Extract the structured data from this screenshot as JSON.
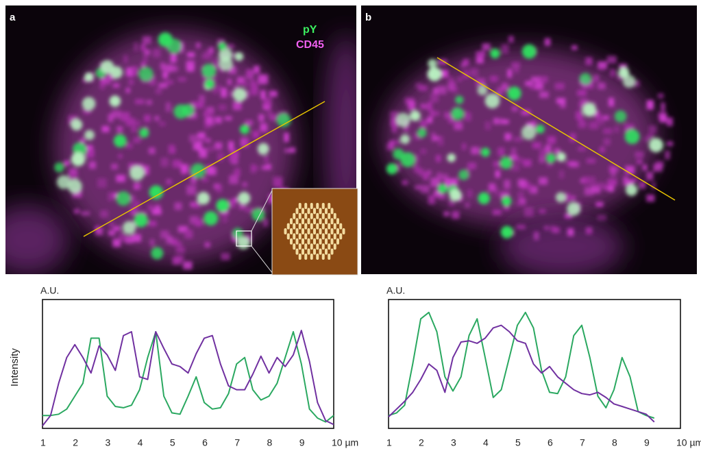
{
  "panels": [
    {
      "label": "a"
    },
    {
      "label": "b"
    }
  ],
  "chart_data": [
    {
      "type": "line",
      "unit_label": "A.U.",
      "ylabel": "Intensity",
      "xlim": [
        1,
        10
      ],
      "ylim": [
        0,
        100
      ],
      "xticks": [
        1,
        2,
        3,
        4,
        5,
        6,
        7,
        8,
        9,
        {
          "value": 10,
          "label": "10 µm"
        }
      ],
      "x": [
        1,
        1.25,
        1.5,
        1.75,
        2,
        2.25,
        2.5,
        2.75,
        3,
        3.25,
        3.5,
        3.75,
        4,
        4.25,
        4.5,
        4.75,
        5,
        5.25,
        5.5,
        5.75,
        6,
        6.25,
        6.5,
        6.75,
        7,
        7.25,
        7.5,
        7.75,
        8,
        8.25,
        8.5,
        8.75,
        9,
        9.25,
        9.5,
        9.75,
        10
      ],
      "series": [
        {
          "name": "pY",
          "color": "#2aa860",
          "values": [
            10,
            10,
            11,
            15,
            25,
            35,
            70,
            70,
            25,
            17,
            16,
            18,
            30,
            55,
            75,
            25,
            12,
            11,
            25,
            40,
            20,
            15,
            16,
            27,
            50,
            55,
            30,
            22,
            25,
            35,
            55,
            75,
            50,
            15,
            8,
            5,
            10
          ]
        },
        {
          "name": "CD45",
          "color": "#7030a0",
          "values": [
            2,
            10,
            35,
            55,
            65,
            55,
            43,
            64,
            57,
            45,
            72,
            75,
            40,
            38,
            75,
            62,
            50,
            48,
            43,
            58,
            70,
            72,
            50,
            33,
            30,
            30,
            42,
            56,
            43,
            55,
            48,
            57,
            76,
            52,
            20,
            6,
            3
          ]
        }
      ]
    },
    {
      "type": "line",
      "unit_label": "A.U.",
      "xlim": [
        1,
        10
      ],
      "ylim": [
        0,
        100
      ],
      "xticks": [
        1,
        2,
        3,
        4,
        5,
        6,
        7,
        8,
        9,
        {
          "value": 10,
          "label": "10 µm"
        }
      ],
      "x": [
        1,
        1.25,
        1.5,
        1.75,
        2,
        2.25,
        2.5,
        2.75,
        3,
        3.25,
        3.5,
        3.75,
        4,
        4.25,
        4.5,
        4.75,
        5,
        5.25,
        5.5,
        5.75,
        6,
        6.25,
        6.5,
        6.75,
        7,
        7.25,
        7.5,
        7.75,
        8,
        8.25,
        8.5,
        8.75,
        9,
        9.25
      ],
      "series": [
        {
          "color": "#2aa860",
          "values": [
            10,
            12,
            18,
            50,
            85,
            90,
            75,
            40,
            29,
            40,
            72,
            85,
            55,
            24,
            30,
            55,
            80,
            90,
            78,
            45,
            28,
            27,
            40,
            72,
            80,
            55,
            25,
            16,
            30,
            55,
            40,
            13,
            10,
            8
          ]
        },
        {
          "color": "#7030a0",
          "values": [
            9,
            15,
            21,
            28,
            38,
            50,
            45,
            28,
            55,
            67,
            68,
            66,
            70,
            78,
            80,
            75,
            68,
            66,
            50,
            43,
            48,
            40,
            35,
            30,
            27,
            26,
            28,
            24,
            19,
            17,
            15,
            13,
            11,
            5
          ]
        }
      ]
    }
  ]
}
